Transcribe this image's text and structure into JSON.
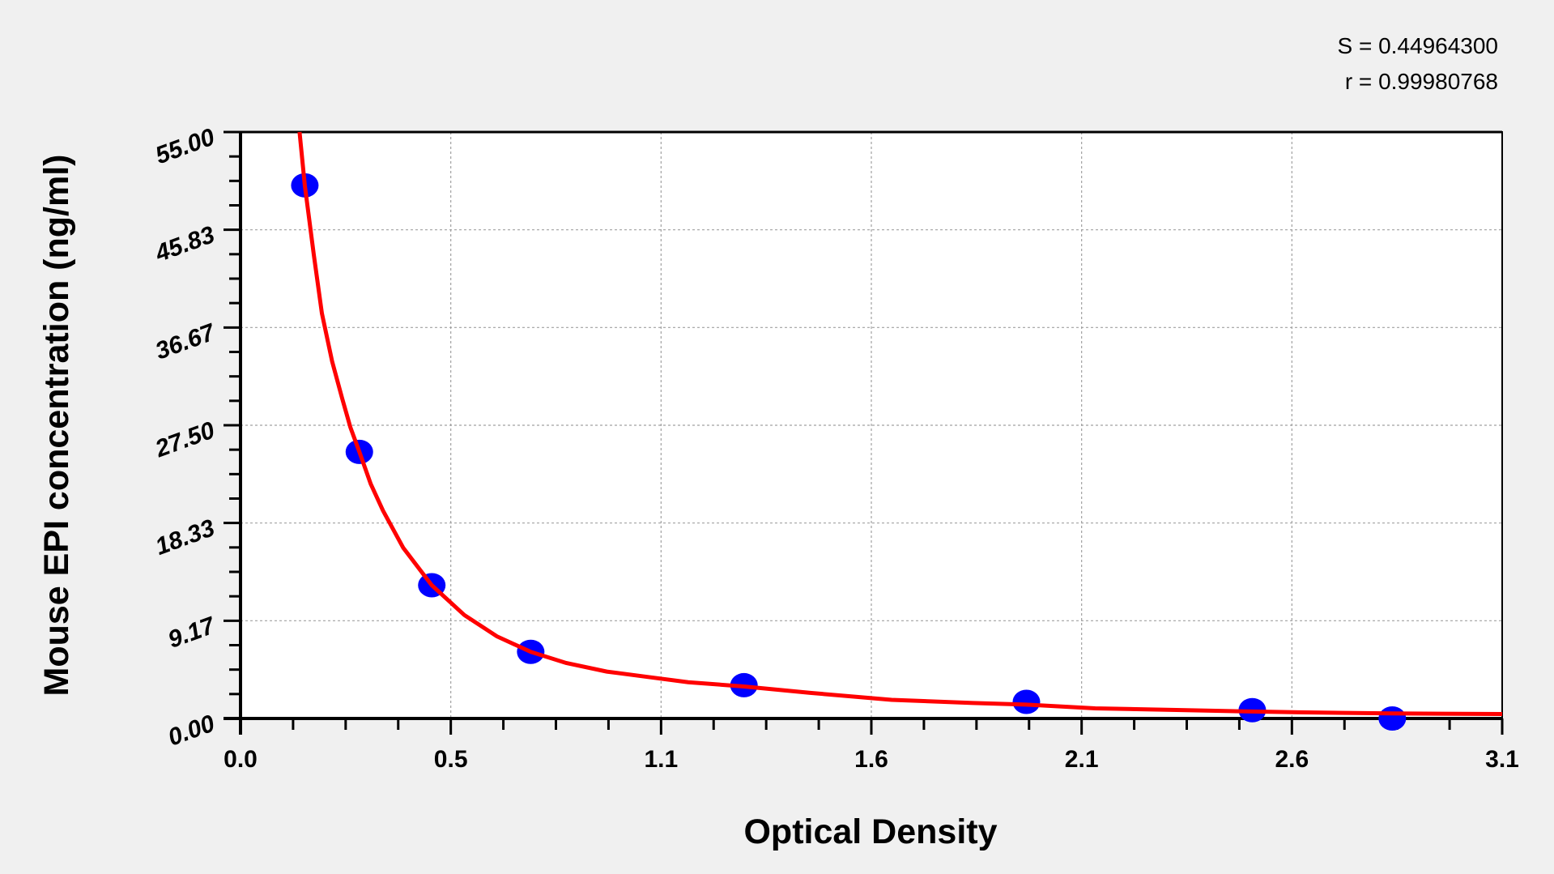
{
  "chart_data": {
    "type": "scatter",
    "xlabel": "Optical Density",
    "ylabel": "Mouse EPI concentration (ng/ml)",
    "xlim": [
      0,
      3.1
    ],
    "ylim": [
      0,
      55
    ],
    "x_tick_labels": [
      "0.0",
      "0.5",
      "1.1",
      "1.6",
      "2.1",
      "2.6",
      "3.1"
    ],
    "y_tick_labels": [
      "0.00",
      "9.17",
      "18.33",
      "27.50",
      "36.67",
      "45.83",
      "55.00"
    ],
    "grid": true,
    "stats": [
      "S = 0.44964300",
      "r = 0.99980768"
    ],
    "points": {
      "color": "#0000ff",
      "x": [
        0.158,
        0.292,
        0.47,
        0.713,
        1.237,
        1.931,
        2.486,
        2.83
      ],
      "y": [
        50,
        25,
        12.5,
        6.25,
        3.12,
        1.56,
        0.78,
        0
      ]
    },
    "fit_curve": {
      "color": "#ff0000",
      "x": [
        0.145,
        0.158,
        0.18,
        0.2,
        0.225,
        0.25,
        0.27,
        0.292,
        0.32,
        0.35,
        0.4,
        0.47,
        0.55,
        0.63,
        0.713,
        0.8,
        0.9,
        1.0,
        1.1,
        1.237,
        1.4,
        1.6,
        1.8,
        1.931,
        2.1,
        2.3,
        2.486,
        2.6,
        2.83,
        3.1
      ],
      "y": [
        55,
        50,
        43.5,
        38,
        33.5,
        30,
        27.3,
        25,
        22,
        19.5,
        16,
        12.5,
        9.7,
        7.7,
        6.25,
        5.2,
        4.4,
        3.9,
        3.4,
        3.0,
        2.4,
        1.75,
        1.45,
        1.3,
        0.95,
        0.8,
        0.65,
        0.58,
        0.47,
        0.42
      ]
    }
  }
}
